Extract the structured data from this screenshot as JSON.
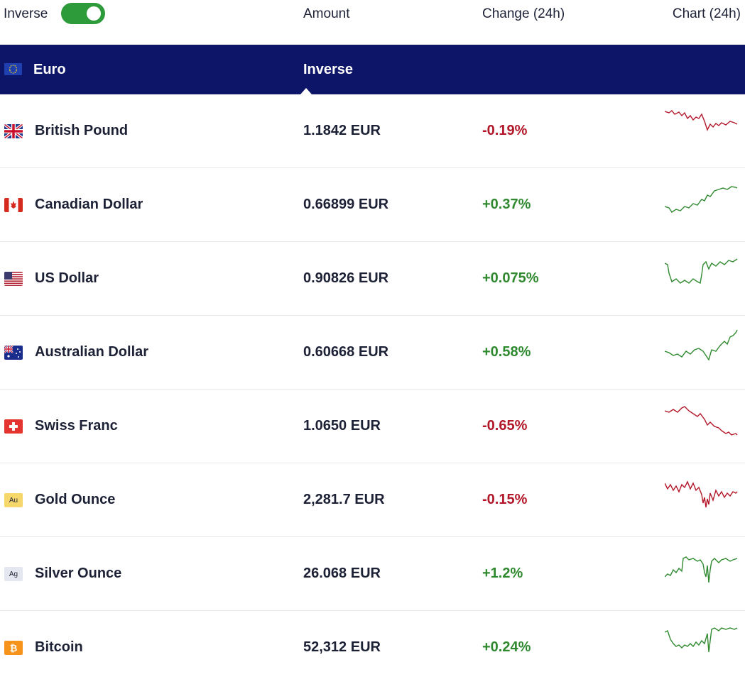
{
  "header": {
    "inverse_label": "Inverse",
    "toggle_on": true,
    "col_amount": "Amount",
    "col_change": "Change (24h)",
    "col_chart": "Chart (24h)"
  },
  "base": {
    "name": "Euro",
    "mode": "Inverse",
    "flag": "eu-flag"
  },
  "colors": {
    "negative": "#b3172a",
    "positive": "#2f8a2f",
    "header_bg": "#0c1568",
    "toggle": "#2e9b3a"
  },
  "rows": [
    {
      "name": "British Pound",
      "amount": "1.1842 EUR",
      "change": "-0.19%",
      "trend": "negative",
      "icon": "uk-flag"
    },
    {
      "name": "Canadian Dollar",
      "amount": "0.66899 EUR",
      "change": "+0.37%",
      "trend": "positive",
      "icon": "canada-flag"
    },
    {
      "name": "US Dollar",
      "amount": "0.90826 EUR",
      "change": "+0.075%",
      "trend": "positive",
      "icon": "us-flag"
    },
    {
      "name": "Australian Dollar",
      "amount": "0.60668 EUR",
      "change": "+0.58%",
      "trend": "positive",
      "icon": "australia-flag"
    },
    {
      "name": "Swiss Franc",
      "amount": "1.0650 EUR",
      "change": "-0.65%",
      "trend": "negative",
      "icon": "swiss-flag"
    },
    {
      "name": "Gold Ounce",
      "amount": "2,281.7 EUR",
      "change": "-0.15%",
      "trend": "negative",
      "icon": "gold-icon",
      "icon_text": "Au"
    },
    {
      "name": "Silver Ounce",
      "amount": "26.068 EUR",
      "change": "+1.2%",
      "trend": "positive",
      "icon": "silver-icon",
      "icon_text": "Ag"
    },
    {
      "name": "Bitcoin",
      "amount": "52,312 EUR",
      "change": "+0.24%",
      "trend": "positive",
      "icon": "bitcoin-icon"
    }
  ]
}
